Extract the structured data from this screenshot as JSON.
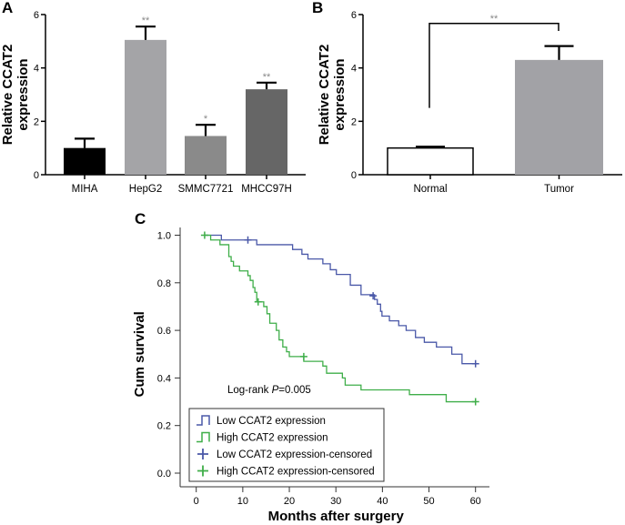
{
  "chart_data": [
    {
      "panel": "A",
      "type": "bar",
      "ylabel": [
        "Relative CCAT2",
        "expression"
      ],
      "ylim": [
        0,
        6
      ],
      "yticks": [
        0,
        2,
        4,
        6
      ],
      "categories": [
        "MIHA",
        "HepG2",
        "SMMC7721",
        "MHCC97H"
      ],
      "values": [
        1.0,
        5.05,
        1.45,
        3.2
      ],
      "errors": [
        0.35,
        0.5,
        0.42,
        0.25
      ],
      "significance": [
        "",
        "**",
        "*",
        "**"
      ],
      "colors": [
        "#000000",
        "#a4a4a7",
        "#8a8a8a",
        "#666666"
      ]
    },
    {
      "panel": "B",
      "type": "bar",
      "ylabel": [
        "Relative CCAT2",
        "expression"
      ],
      "ylim": [
        0,
        6
      ],
      "yticks": [
        0,
        2,
        4,
        6
      ],
      "categories": [
        "Normal",
        "Tumor"
      ],
      "values": [
        1.0,
        4.3
      ],
      "errors": [
        0.05,
        0.52
      ],
      "colors": [
        "#ffffff",
        "#a2a2a6"
      ],
      "bracket_label": "**"
    },
    {
      "panel": "C",
      "type": "line",
      "xlabel": "Months after surgery",
      "ylabel": "Cum survival",
      "xlim": [
        0,
        60
      ],
      "ylim": [
        0,
        1
      ],
      "xticks": [
        0,
        10,
        20,
        30,
        40,
        50,
        60
      ],
      "yticks": [
        "0.0",
        "0.2",
        "0.4",
        "0.6",
        "0.8",
        "1.0"
      ],
      "annotation": {
        "prefix": "Log-rank ",
        "p": "P",
        "suffix": "=0.005"
      },
      "legend": {
        "position": "bottom-left",
        "entries": [
          "Low CCAT2 expression",
          "High CCAT2 expression",
          "Low CCAT2 expression-censored",
          "High CCAT2 expression-censored"
        ]
      },
      "series": [
        {
          "name": "Low CCAT2 expression",
          "color": "#4a58a8",
          "steps": [
            [
              1.8,
              1.0
            ],
            [
              5.4,
              0.98
            ],
            [
              13,
              0.96
            ],
            [
              20.7,
              0.94
            ],
            [
              22.7,
              0.92
            ],
            [
              24,
              0.9
            ],
            [
              27.2,
              0.88
            ],
            [
              28.8,
              0.855
            ],
            [
              30.1,
              0.835
            ],
            [
              33.1,
              0.79
            ],
            [
              35.4,
              0.75
            ],
            [
              38.3,
              0.73
            ],
            [
              38.9,
              0.71
            ],
            [
              39.6,
              0.68
            ],
            [
              39.9,
              0.66
            ],
            [
              41.5,
              0.64
            ],
            [
              43.5,
              0.62
            ],
            [
              45.1,
              0.6
            ],
            [
              47.1,
              0.57
            ],
            [
              49,
              0.55
            ],
            [
              51.6,
              0.53
            ],
            [
              54.9,
              0.5
            ],
            [
              57.1,
              0.46
            ]
          ],
          "end": 60,
          "censored": [
            [
              11.1,
              0.98
            ],
            [
              38,
              0.745
            ],
            [
              60,
              0.46
            ]
          ]
        },
        {
          "name": "High CCAT2 expression",
          "color": "#3fae49",
          "steps": [
            [
              1.8,
              1.0
            ],
            [
              3.1,
              0.98
            ],
            [
              5.1,
              0.96
            ],
            [
              7.0,
              0.91
            ],
            [
              7.5,
              0.89
            ],
            [
              8.0,
              0.87
            ],
            [
              9.3,
              0.85
            ],
            [
              11.1,
              0.83
            ],
            [
              11.6,
              0.81
            ],
            [
              12.2,
              0.78
            ],
            [
              12.6,
              0.76
            ],
            [
              13.0,
              0.72
            ],
            [
              14.5,
              0.7
            ],
            [
              15.2,
              0.67
            ],
            [
              15.8,
              0.63
            ],
            [
              17.2,
              0.6
            ],
            [
              17.8,
              0.56
            ],
            [
              18.6,
              0.53
            ],
            [
              19.4,
              0.51
            ],
            [
              20,
              0.49
            ],
            [
              23.1,
              0.47
            ],
            [
              27.2,
              0.45
            ],
            [
              28,
              0.42
            ],
            [
              31.4,
              0.4
            ],
            [
              32,
              0.37
            ],
            [
              35.4,
              0.35
            ],
            [
              45.8,
              0.33
            ],
            [
              53.7,
              0.3
            ]
          ],
          "end": 60,
          "censored": [
            [
              1.8,
              1.0
            ],
            [
              13.3,
              0.72
            ],
            [
              23.1,
              0.49
            ],
            [
              60,
              0.3
            ]
          ]
        }
      ]
    }
  ]
}
